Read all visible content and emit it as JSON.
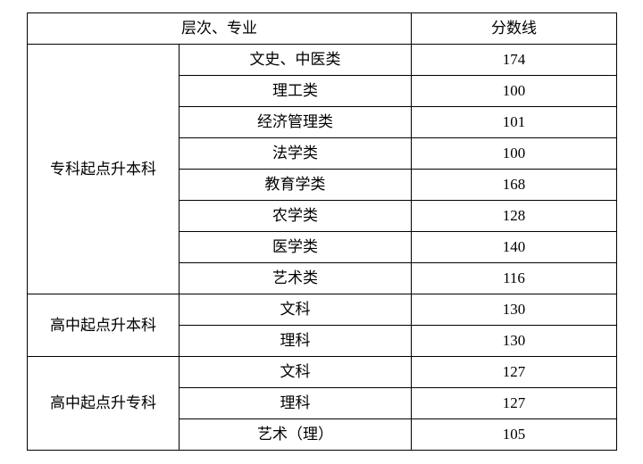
{
  "table": {
    "type": "table",
    "header": {
      "level_major": "层次、专业",
      "score_line": "分数线"
    },
    "group1": {
      "title": "专科起点升本科",
      "rows": [
        {
          "major": "文史、中医类",
          "score": "174"
        },
        {
          "major": "理工类",
          "score": "100"
        },
        {
          "major": "经济管理类",
          "score": "101"
        },
        {
          "major": "法学类",
          "score": "100"
        },
        {
          "major": "教育学类",
          "score": "168"
        },
        {
          "major": "农学类",
          "score": "128"
        },
        {
          "major": "医学类",
          "score": "140"
        },
        {
          "major": "艺术类",
          "score": "116"
        }
      ]
    },
    "group2": {
      "title": "高中起点升本科",
      "rows": [
        {
          "major": "文科",
          "score": "130"
        },
        {
          "major": "理科",
          "score": "130"
        }
      ]
    },
    "group3": {
      "title": "高中起点升专科",
      "rows": [
        {
          "major": "文科",
          "score": "127"
        },
        {
          "major": "理科",
          "score": "127"
        },
        {
          "major": "艺术（理）",
          "score": "105"
        }
      ]
    },
    "colors": {
      "border": "#000000",
      "background": "#ffffff",
      "text": "#000000"
    },
    "font": {
      "family": "SimSun",
      "size_pt": 13
    }
  }
}
